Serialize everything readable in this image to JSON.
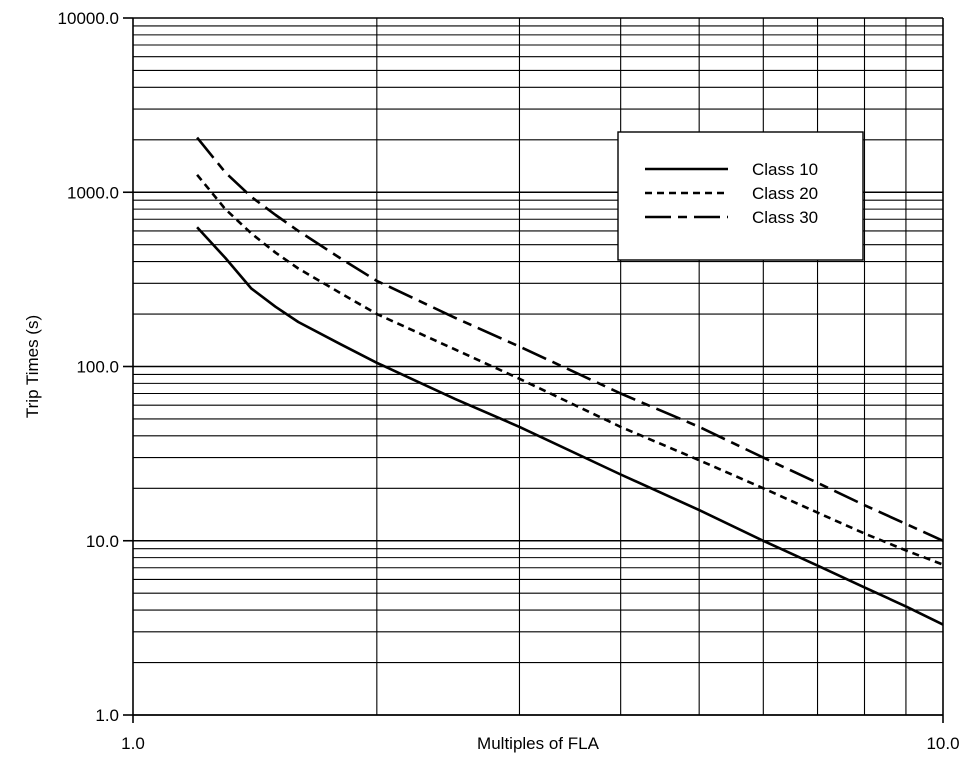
{
  "chart_data": {
    "type": "line",
    "xlabel": "Multiples of FLA",
    "ylabel": "Trip Times (s)",
    "x_scale": "log",
    "y_scale": "log",
    "xlim": [
      1.0,
      10.0
    ],
    "ylim": [
      1.0,
      10000.0
    ],
    "x_tick_labels": [
      "1.0",
      "10.0"
    ],
    "y_tick_labels": [
      "1.0",
      "10.0",
      "100.0",
      "1000.0",
      "10000.0"
    ],
    "grid": true,
    "legend_position": "top-right",
    "series": [
      {
        "name": "Class 10",
        "dash": "solid",
        "x": [
          1.2,
          1.3,
          1.4,
          1.5,
          1.6,
          1.8,
          2.0,
          2.5,
          3.0,
          4.0,
          5.0,
          6.0,
          7.0,
          8.0,
          9.0,
          10.0
        ],
        "y": [
          630,
          420,
          280,
          220,
          180,
          135,
          105,
          65,
          45,
          24,
          15,
          10,
          7.2,
          5.4,
          4.2,
          3.3
        ]
      },
      {
        "name": "Class 20",
        "dash": "short-dash",
        "x": [
          1.2,
          1.3,
          1.4,
          1.5,
          1.6,
          1.8,
          2.0,
          2.5,
          3.0,
          4.0,
          5.0,
          6.0,
          7.0,
          8.0,
          9.0,
          10.0
        ],
        "y": [
          1260,
          800,
          580,
          450,
          365,
          265,
          200,
          125,
          85,
          45,
          29,
          20,
          14.5,
          11,
          8.8,
          7.3
        ]
      },
      {
        "name": "Class 30",
        "dash": "long-dash",
        "x": [
          1.2,
          1.3,
          1.4,
          1.5,
          1.6,
          1.8,
          2.0,
          2.5,
          3.0,
          4.0,
          5.0,
          6.0,
          7.0,
          8.0,
          9.0,
          10.0
        ],
        "y": [
          2060,
          1300,
          940,
          740,
          600,
          420,
          310,
          190,
          130,
          70,
          45,
          30,
          21.5,
          16,
          12.5,
          10
        ]
      }
    ]
  },
  "colors": {
    "line": "#000000",
    "grid": "#000000",
    "background": "#ffffff"
  }
}
